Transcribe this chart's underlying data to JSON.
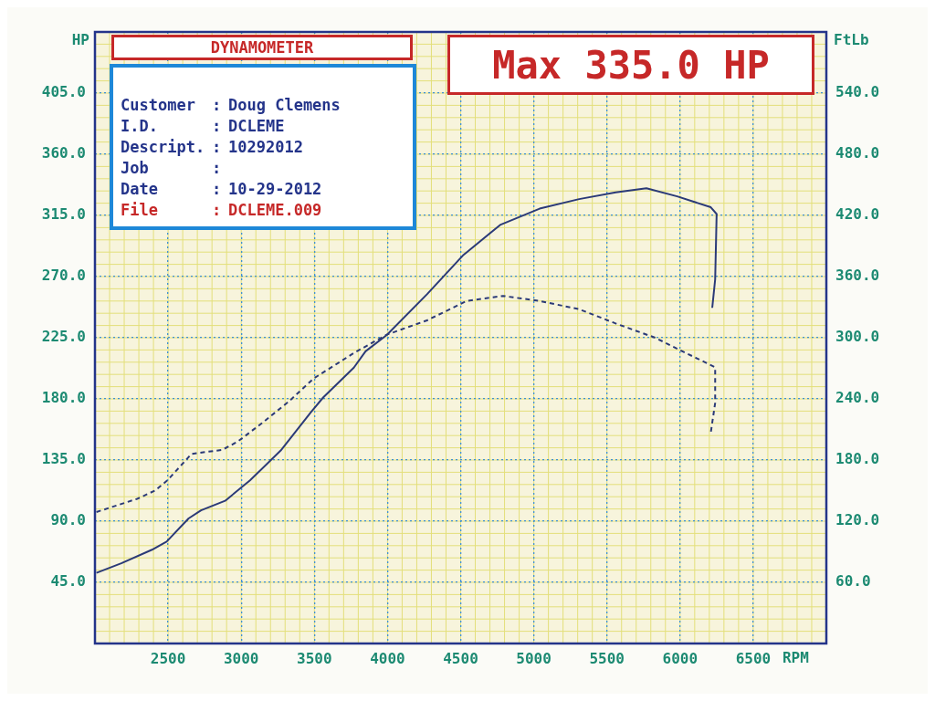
{
  "chart_data": {
    "type": "line",
    "xlabel": "RPM",
    "ylabel": "HP",
    "y2label": "FtLb",
    "annotations": [
      "DYNAMOMETER",
      "Max 335.0 HP",
      "Customer : Doug Clemens",
      "I.D. : DCLEME",
      "Descript. : 10292012",
      "Job :",
      "Date : 10-29-2012",
      "File : DCLEME.009"
    ],
    "xlim": [
      2000,
      7000
    ],
    "xticks": [
      2500,
      3000,
      3500,
      4000,
      4500,
      5000,
      5500,
      6000,
      6500
    ],
    "ylim": [
      0,
      450
    ],
    "yticks": [
      {
        "value": 45,
        "label": "45.0"
      },
      {
        "value": 90,
        "label": "90.0"
      },
      {
        "value": 135,
        "label": "135.0"
      },
      {
        "value": 180,
        "label": "180.0"
      },
      {
        "value": 225,
        "label": "225.0"
      },
      {
        "value": 270,
        "label": "270.0"
      },
      {
        "value": 315,
        "label": "315.0"
      },
      {
        "value": 360,
        "label": "360.0"
      },
      {
        "value": 405,
        "label": "405.0"
      }
    ],
    "y2lim": [
      0,
      600
    ],
    "y2ticks": [
      {
        "value": 60,
        "label": "60.0"
      },
      {
        "value": 120,
        "label": "120.0"
      },
      {
        "value": 180,
        "label": "180.0"
      },
      {
        "value": 240,
        "label": "240.0"
      },
      {
        "value": 300,
        "label": "300.0"
      },
      {
        "value": 360,
        "label": "360.0"
      },
      {
        "value": 420,
        "label": "420.0"
      },
      {
        "value": 480,
        "label": "480.0"
      },
      {
        "value": 540,
        "label": "540.0"
      }
    ],
    "grid": true,
    "legend": false,
    "marker": "none",
    "series": [
      {
        "color": "#2b3a78",
        "line_style": "solid",
        "x": [
          2010,
          2180,
          2390,
          2490,
          2640,
          2725,
          2890,
          3060,
          3270,
          3475,
          3560,
          3770,
          3850,
          3995,
          4270,
          4520,
          4770,
          5040,
          5310,
          5560,
          5770,
          5980,
          6210,
          6250,
          6240,
          6220
        ],
        "values": [
          52,
          59,
          69,
          75,
          92,
          98,
          105,
          120,
          142,
          170,
          181,
          203,
          215,
          227,
          257,
          286,
          308,
          320,
          327,
          332,
          335,
          329,
          321,
          316,
          268,
          247
        ]
      },
      {
        "color": "#2b3a78",
        "line_style": "dashed",
        "axis": "y2",
        "x": [
          2010,
          2290,
          2410,
          2495,
          2660,
          2870,
          2975,
          3140,
          3330,
          3495,
          3770,
          3995,
          4270,
          4540,
          4790,
          5040,
          5310,
          5560,
          5830,
          6040,
          6240,
          6240,
          6210
        ],
        "values": [
          129,
          142,
          150,
          160,
          186,
          190,
          198,
          216,
          238,
          260,
          285,
          303,
          317,
          336,
          341,
          336,
          328,
          314,
          300,
          285,
          271,
          236,
          207
        ]
      }
    ]
  }
}
